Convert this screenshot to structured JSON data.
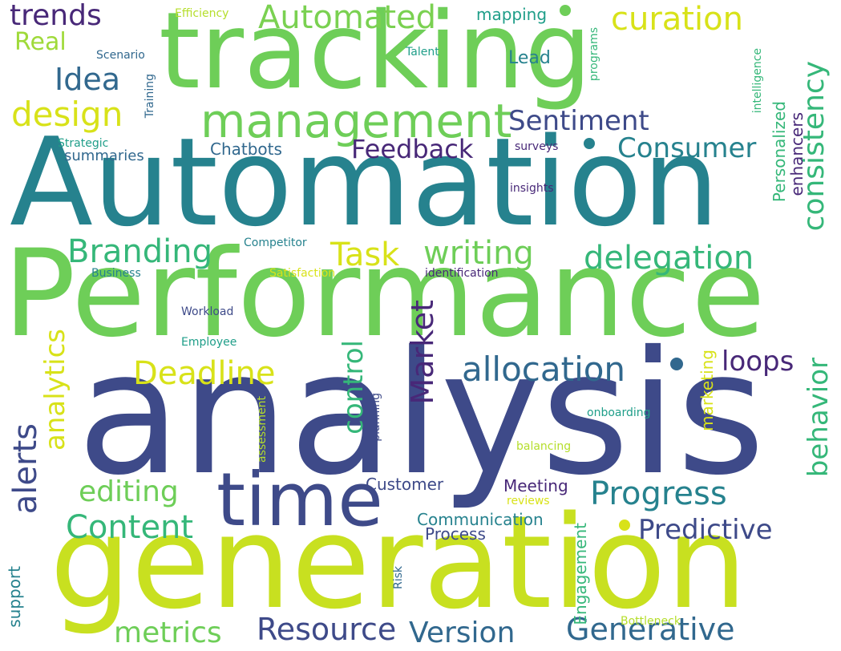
{
  "words": {
    "automation": "Automation",
    "performance": "Performance",
    "analysis": "analysis",
    "generation": "generation",
    "tracking": "tracking",
    "time": "time",
    "management": "management",
    "automated": "Automated",
    "curation": "curation",
    "trends": "trends",
    "real": "Real",
    "idea": "Idea",
    "design": "design",
    "sentiment": "Sentiment",
    "consumer": "Consumer",
    "consistency": "consistency",
    "feedback": "Feedback",
    "chatbots": "Chatbots",
    "summaries": "summaries",
    "strategic": "Strategic",
    "training": "Training",
    "scenario": "Scenario",
    "efficiency": "Efficiency",
    "mapping": "mapping",
    "talent": "Talent",
    "lead": "Lead",
    "programs": "programs",
    "intelligence": "intelligence",
    "personalized": "Personalized",
    "enhancers": "enhancers",
    "surveys": "surveys",
    "insights": "insights",
    "branding": "Branding",
    "task": "Task",
    "writing": "writing",
    "delegation": "delegation",
    "competitor": "Competitor",
    "business": "Business",
    "satisfaction": "Satisfaction",
    "identification": "identification",
    "workload": "Workload",
    "employee": "Employee",
    "analytics": "analytics",
    "deadline": "Deadline",
    "market": "Market",
    "control": "control",
    "allocation": "allocation",
    "loops": "loops",
    "behavior": "behavior",
    "alerts": "alerts",
    "editing": "editing",
    "content": "Content",
    "progress": "Progress",
    "predictive": "Predictive",
    "customer": "Customer",
    "meeting": "Meeting",
    "reviews": "reviews",
    "communication": "Communication",
    "process": "Process",
    "engagement": "Engagement",
    "risk": "Risk",
    "support": "support",
    "metrics": "metrics",
    "resource": "Resource",
    "version": "Version",
    "generative": "Generative",
    "bottleneck": "Bottleneck",
    "assessment": "assessment",
    "planning": "planning",
    "marketing": "marketing",
    "onboarding": "onboarding",
    "balancing": "balancing"
  },
  "palette": {
    "purple": "#482878",
    "indigo": "#3e4a89",
    "blue": "#31688e",
    "teal": "#26828e",
    "sea": "#1f9e89",
    "green": "#35b779",
    "lime": "#6ece58",
    "yellowgreen": "#b5de2b",
    "yellow": "#d8e219",
    "background": "#ffffff"
  }
}
